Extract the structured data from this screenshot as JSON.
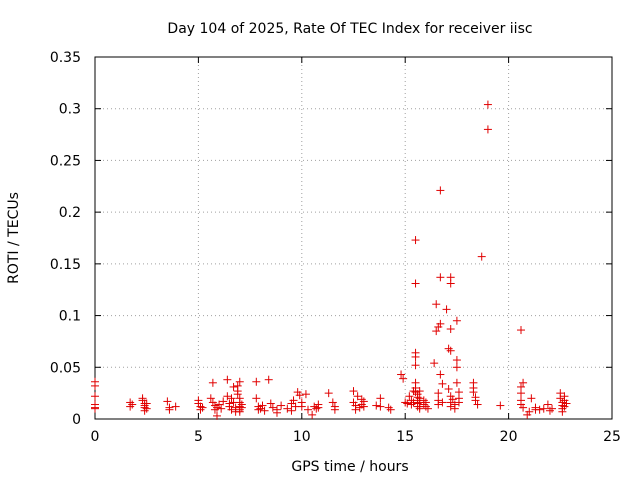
{
  "chart_data": {
    "type": "scatter",
    "title": "Day 104 of 2025, Rate Of TEC Index for receiver iisc",
    "xlabel": "GPS time / hours",
    "ylabel": "ROTI / TECUs",
    "xlim": [
      0,
      25
    ],
    "ylim": [
      0,
      0.35
    ],
    "xticks": [
      0,
      5,
      10,
      15,
      20,
      25
    ],
    "xtick_labels": [
      "0",
      "5",
      "10",
      "15",
      "20",
      "25"
    ],
    "yticks": [
      0,
      0.05,
      0.1,
      0.15,
      0.2,
      0.25,
      0.3,
      0.35
    ],
    "ytick_labels": [
      "0",
      "0.05",
      "0.1",
      "0.15",
      "0.2",
      "0.25",
      "0.3",
      "0.35"
    ],
    "grid": true,
    "legend": "none",
    "marker": "plus",
    "color": "#e00000",
    "points": [
      [
        0.0,
        0.036
      ],
      [
        0.0,
        0.032
      ],
      [
        0.0,
        0.022
      ],
      [
        0.0,
        0.014
      ],
      [
        0.0,
        0.011
      ],
      [
        0.0,
        0.01
      ],
      [
        1.7,
        0.016
      ],
      [
        1.7,
        0.012
      ],
      [
        1.8,
        0.014
      ],
      [
        2.3,
        0.02
      ],
      [
        2.3,
        0.018
      ],
      [
        2.4,
        0.015
      ],
      [
        2.4,
        0.013
      ],
      [
        2.4,
        0.011
      ],
      [
        2.5,
        0.01
      ],
      [
        2.5,
        0.015
      ],
      [
        2.4,
        0.008
      ],
      [
        3.5,
        0.017
      ],
      [
        3.6,
        0.011
      ],
      [
        3.6,
        0.009
      ],
      [
        3.9,
        0.012
      ],
      [
        5.0,
        0.018
      ],
      [
        5.0,
        0.015
      ],
      [
        5.1,
        0.012
      ],
      [
        5.1,
        0.009
      ],
      [
        5.2,
        0.011
      ],
      [
        5.6,
        0.02
      ],
      [
        5.7,
        0.035
      ],
      [
        5.7,
        0.016
      ],
      [
        5.8,
        0.013
      ],
      [
        5.8,
        0.009
      ],
      [
        5.9,
        0.011
      ],
      [
        5.9,
        0.003
      ],
      [
        6.0,
        0.014
      ],
      [
        6.1,
        0.01
      ],
      [
        6.2,
        0.017
      ],
      [
        6.4,
        0.038
      ],
      [
        6.4,
        0.022
      ],
      [
        6.5,
        0.015
      ],
      [
        6.5,
        0.012
      ],
      [
        6.6,
        0.009
      ],
      [
        6.6,
        0.02
      ],
      [
        6.7,
        0.031
      ],
      [
        6.7,
        0.016
      ],
      [
        6.8,
        0.011
      ],
      [
        6.8,
        0.007
      ],
      [
        6.9,
        0.032
      ],
      [
        6.9,
        0.027
      ],
      [
        6.9,
        0.024
      ],
      [
        7.0,
        0.036
      ],
      [
        7.0,
        0.02
      ],
      [
        7.0,
        0.016
      ],
      [
        7.0,
        0.012
      ],
      [
        7.0,
        0.009
      ],
      [
        7.0,
        0.007
      ],
      [
        7.1,
        0.014
      ],
      [
        7.1,
        0.011
      ],
      [
        7.8,
        0.036
      ],
      [
        7.8,
        0.02
      ],
      [
        7.9,
        0.012
      ],
      [
        7.9,
        0.009
      ],
      [
        8.0,
        0.01
      ],
      [
        8.1,
        0.013
      ],
      [
        8.2,
        0.008
      ],
      [
        8.4,
        0.038
      ],
      [
        8.5,
        0.015
      ],
      [
        8.6,
        0.011
      ],
      [
        8.8,
        0.009
      ],
      [
        8.8,
        0.006
      ],
      [
        9.0,
        0.013
      ],
      [
        9.3,
        0.01
      ],
      [
        9.5,
        0.008
      ],
      [
        9.5,
        0.015
      ],
      [
        9.6,
        0.018
      ],
      [
        9.7,
        0.012
      ],
      [
        9.8,
        0.026
      ],
      [
        9.9,
        0.023
      ],
      [
        10.0,
        0.016
      ],
      [
        10.0,
        0.012
      ],
      [
        10.2,
        0.024
      ],
      [
        10.3,
        0.009
      ],
      [
        10.5,
        0.004
      ],
      [
        10.6,
        0.012
      ],
      [
        10.7,
        0.01
      ],
      [
        10.8,
        0.014
      ],
      [
        10.8,
        0.011
      ],
      [
        11.3,
        0.025
      ],
      [
        11.5,
        0.016
      ],
      [
        11.6,
        0.012
      ],
      [
        11.6,
        0.009
      ],
      [
        12.5,
        0.027
      ],
      [
        12.5,
        0.016
      ],
      [
        12.6,
        0.013
      ],
      [
        12.6,
        0.009
      ],
      [
        12.7,
        0.022
      ],
      [
        12.8,
        0.011
      ],
      [
        12.9,
        0.019
      ],
      [
        12.9,
        0.014
      ],
      [
        13.0,
        0.017
      ],
      [
        13.0,
        0.012
      ],
      [
        13.6,
        0.013
      ],
      [
        13.8,
        0.02
      ],
      [
        13.8,
        0.012
      ],
      [
        14.2,
        0.011
      ],
      [
        14.3,
        0.009
      ],
      [
        14.8,
        0.043
      ],
      [
        14.9,
        0.039
      ],
      [
        15.0,
        0.016
      ],
      [
        15.1,
        0.015
      ],
      [
        15.2,
        0.022
      ],
      [
        15.3,
        0.018
      ],
      [
        15.3,
        0.014
      ],
      [
        15.4,
        0.027
      ],
      [
        15.4,
        0.016
      ],
      [
        15.5,
        0.173
      ],
      [
        15.5,
        0.131
      ],
      [
        15.5,
        0.064
      ],
      [
        15.5,
        0.06
      ],
      [
        15.5,
        0.052
      ],
      [
        15.5,
        0.035
      ],
      [
        15.5,
        0.03
      ],
      [
        15.5,
        0.026
      ],
      [
        15.6,
        0.024
      ],
      [
        15.6,
        0.021
      ],
      [
        15.6,
        0.018
      ],
      [
        15.6,
        0.015
      ],
      [
        15.6,
        0.012
      ],
      [
        15.7,
        0.027
      ],
      [
        15.7,
        0.02
      ],
      [
        15.7,
        0.016
      ],
      [
        15.7,
        0.012
      ],
      [
        15.7,
        0.01
      ],
      [
        15.9,
        0.018
      ],
      [
        15.9,
        0.014
      ],
      [
        16.0,
        0.016
      ],
      [
        16.0,
        0.012
      ],
      [
        16.1,
        0.01
      ],
      [
        16.4,
        0.054
      ],
      [
        16.5,
        0.111
      ],
      [
        16.5,
        0.085
      ],
      [
        16.6,
        0.089
      ],
      [
        16.6,
        0.025
      ],
      [
        16.6,
        0.018
      ],
      [
        16.6,
        0.014
      ],
      [
        16.7,
        0.221
      ],
      [
        16.7,
        0.137
      ],
      [
        16.7,
        0.092
      ],
      [
        16.7,
        0.043
      ],
      [
        16.8,
        0.034
      ],
      [
        16.8,
        0.016
      ],
      [
        17.0,
        0.106
      ],
      [
        17.1,
        0.068
      ],
      [
        17.1,
        0.029
      ],
      [
        17.2,
        0.137
      ],
      [
        17.2,
        0.131
      ],
      [
        17.2,
        0.087
      ],
      [
        17.2,
        0.066
      ],
      [
        17.2,
        0.022
      ],
      [
        17.2,
        0.016
      ],
      [
        17.2,
        0.012
      ],
      [
        17.3,
        0.019
      ],
      [
        17.4,
        0.014
      ],
      [
        17.4,
        0.01
      ],
      [
        17.5,
        0.095
      ],
      [
        17.5,
        0.057
      ],
      [
        17.5,
        0.05
      ],
      [
        17.5,
        0.035
      ],
      [
        17.6,
        0.026
      ],
      [
        17.6,
        0.02
      ],
      [
        17.6,
        0.016
      ],
      [
        18.3,
        0.035
      ],
      [
        18.3,
        0.03
      ],
      [
        18.3,
        0.026
      ],
      [
        18.4,
        0.021
      ],
      [
        18.4,
        0.018
      ],
      [
        18.5,
        0.014
      ],
      [
        18.7,
        0.157
      ],
      [
        19.0,
        0.304
      ],
      [
        19.0,
        0.28
      ],
      [
        19.6,
        0.013
      ],
      [
        20.6,
        0.086
      ],
      [
        20.6,
        0.031
      ],
      [
        20.6,
        0.025
      ],
      [
        20.6,
        0.018
      ],
      [
        20.6,
        0.014
      ],
      [
        20.7,
        0.035
      ],
      [
        20.7,
        0.011
      ],
      [
        20.9,
        0.004
      ],
      [
        21.0,
        0.007
      ],
      [
        21.1,
        0.02
      ],
      [
        21.3,
        0.011
      ],
      [
        21.3,
        0.009
      ],
      [
        21.5,
        0.009
      ],
      [
        21.7,
        0.01
      ],
      [
        21.9,
        0.014
      ],
      [
        22.0,
        0.008
      ],
      [
        22.1,
        0.01
      ],
      [
        22.5,
        0.025
      ],
      [
        22.5,
        0.02
      ],
      [
        22.6,
        0.016
      ],
      [
        22.6,
        0.013
      ],
      [
        22.6,
        0.01
      ],
      [
        22.6,
        0.007
      ],
      [
        22.7,
        0.018
      ],
      [
        22.7,
        0.012
      ],
      [
        22.7,
        0.022
      ],
      [
        22.8,
        0.015
      ]
    ]
  }
}
